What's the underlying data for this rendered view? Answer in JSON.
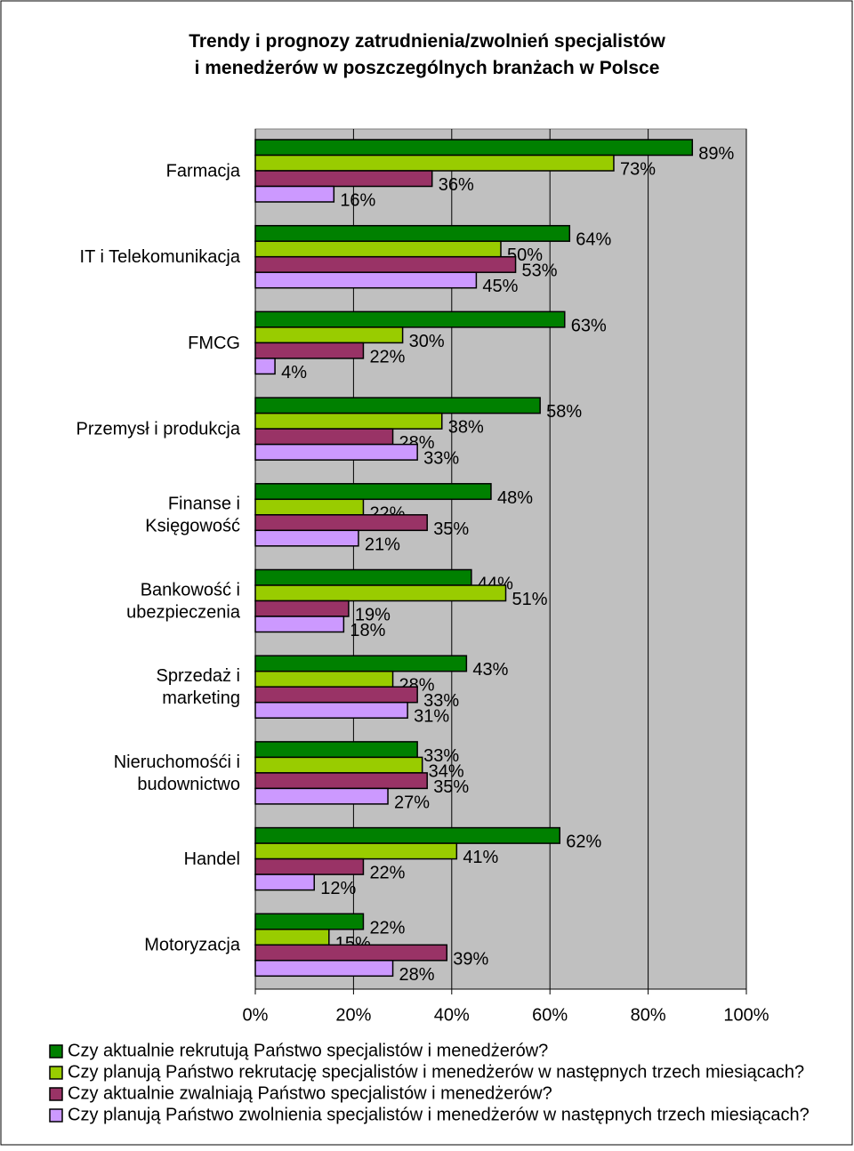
{
  "chart_data": {
    "type": "bar",
    "orientation": "horizontal",
    "title": "Trendy i prognozy zatrudnienia/zwolnień specjalistów\ni menedżerów w poszczególnych branżach w Polsce",
    "categories": [
      "Farmacja",
      "IT i Telekomunikacja",
      "FMCG",
      "Przemysł i produkcja",
      "Finanse i\nKsięgowość",
      "Bankowość i\nubezpieczenia",
      "Sprzedaż i\nmarketing",
      "Nieruchomośći i\nbudownictwo",
      "Handel",
      "Motoryzacja"
    ],
    "series": [
      {
        "name": "Czy aktualnie rekrutują Państwo specjalistów i menedżerów?",
        "color": "#008000",
        "values": [
          89,
          64,
          63,
          58,
          48,
          44,
          43,
          33,
          62,
          22
        ],
        "value_labels": [
          "89%",
          "64%",
          "63%",
          "58%",
          "48%",
          "44%",
          "43%",
          "33%",
          "62%",
          "22%"
        ]
      },
      {
        "name": "Czy planują Państwo rekrutację specjalistów i menedżerów w następnych trzech miesiącach?",
        "color": "#99cc00",
        "values": [
          73,
          50,
          30,
          38,
          22,
          51,
          28,
          34,
          41,
          15
        ],
        "value_labels": [
          "73%",
          "50%",
          "30%",
          "38%",
          "22%",
          "51%",
          "28%",
          "34%",
          "41%",
          "15%"
        ]
      },
      {
        "name": "Czy aktualnie zwalniają Państwo specjalistów i menedżerów?",
        "color": "#993366",
        "values": [
          36,
          53,
          22,
          28,
          35,
          19,
          33,
          35,
          22,
          39
        ],
        "value_labels": [
          "36%",
          "53%",
          "22%",
          "28%",
          "35%",
          "19%",
          "33%",
          "35%",
          "22%",
          "39%"
        ]
      },
      {
        "name": "Czy planują Państwo zwolnienia specjalistów i menedżerów w następnych trzech miesiącach?",
        "color": "#cc99ff",
        "values": [
          16,
          45,
          4,
          33,
          21,
          18,
          31,
          27,
          12,
          28
        ],
        "value_labels": [
          "16%",
          "45%",
          "4%",
          "33%",
          "21%",
          "18%",
          "31%",
          "27%",
          "12%",
          "28%"
        ]
      }
    ],
    "xlim": [
      0,
      100
    ],
    "xticks": [
      {
        "value": 0,
        "label": "0%"
      },
      {
        "value": 20,
        "label": "20%"
      },
      {
        "value": 40,
        "label": "40%"
      },
      {
        "value": 60,
        "label": "60%"
      },
      {
        "value": 80,
        "label": "80%"
      },
      {
        "value": 100,
        "label": "100%"
      }
    ],
    "grid": true
  }
}
